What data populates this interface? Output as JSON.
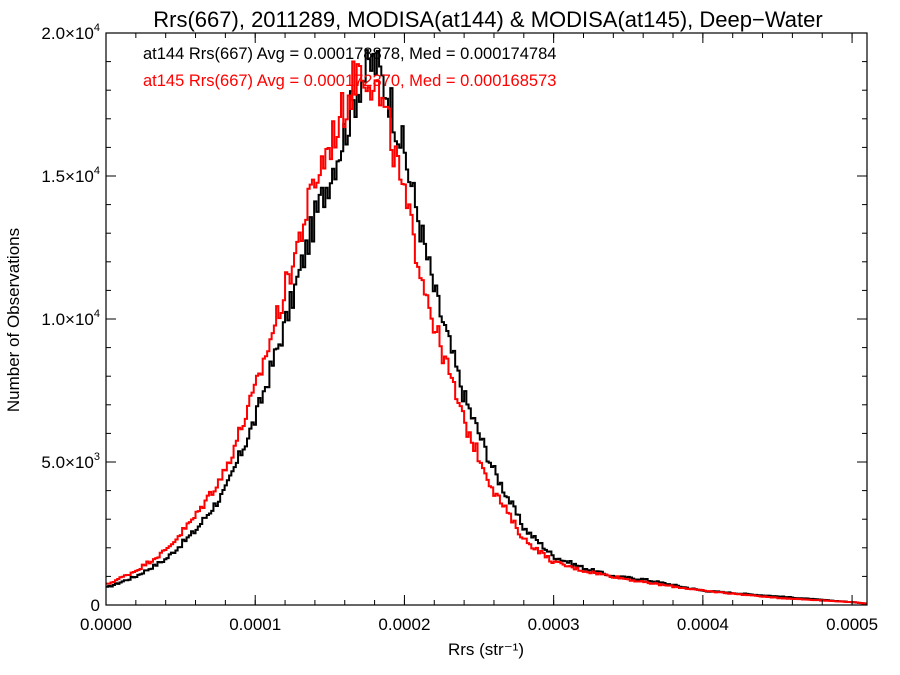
{
  "chart_data": {
    "type": "histogram-step",
    "title": "Rrs(667), 2011289, MODISA(at144) & MODISA(at145), Deep−Water",
    "xlabel": "Rrs (str⁻¹)",
    "ylabel": "Number of Observations",
    "xlim": [
      0.0,
      0.00051
    ],
    "ylim": [
      0,
      20000
    ],
    "x_ticks": [
      0.0,
      0.0001,
      0.0002,
      0.0003,
      0.0004,
      0.0005
    ],
    "x_tick_labels": [
      "0.0000",
      "0.0001",
      "0.0002",
      "0.0003",
      "0.0004",
      "0.0005"
    ],
    "y_ticks": [
      0,
      5000,
      10000,
      15000,
      20000
    ],
    "y_tick_labels": [
      {
        "mantissa": "0",
        "exponent": ""
      },
      {
        "mantissa": "5.0×10",
        "exponent": "3"
      },
      {
        "mantissa": "1.0×10",
        "exponent": "4"
      },
      {
        "mantissa": "1.5×10",
        "exponent": "4"
      },
      {
        "mantissa": "2.0×10",
        "exponent": "4"
      }
    ],
    "grid": false,
    "legend_position": "top-left",
    "series": [
      {
        "name": "at144",
        "color": "#000000",
        "legend": "at144 Rrs(667) Avg = 0.000178878, Med = 0.000174784",
        "x": [
          0.0,
          2e-05,
          4e-05,
          6e-05,
          8e-05,
          0.0001,
          0.00012,
          0.00014,
          0.00016,
          0.00017,
          0.00018,
          0.00019,
          0.0002,
          0.00022,
          0.00024,
          0.00026,
          0.00028,
          0.0003,
          0.00032,
          0.00034,
          0.00036,
          0.0004,
          0.00045,
          0.0005,
          0.00051
        ],
        "y": [
          600,
          1000,
          1600,
          2600,
          4000,
          6500,
          9800,
          13500,
          16500,
          18300,
          19000,
          17800,
          15800,
          11000,
          7300,
          4700,
          2700,
          1700,
          1300,
          1000,
          900,
          500,
          300,
          100,
          50
        ]
      },
      {
        "name": "at145",
        "color": "#ff0000",
        "legend": "at145 Rrs(667) Avg = 0.000172370, Med = 0.000168573",
        "x": [
          0.0,
          2e-05,
          4e-05,
          6e-05,
          8e-05,
          0.0001,
          0.00012,
          0.00014,
          0.00016,
          0.00017,
          0.00018,
          0.00019,
          0.0002,
          0.00022,
          0.00024,
          0.00026,
          0.00028,
          0.0003,
          0.00032,
          0.00034,
          0.00036,
          0.0004,
          0.00045,
          0.0005,
          0.00051
        ],
        "y": [
          700,
          1200,
          1900,
          3100,
          4700,
          7500,
          11000,
          14800,
          17400,
          18900,
          18300,
          16600,
          14200,
          9800,
          6400,
          4000,
          2300,
          1500,
          1200,
          1000,
          800,
          500,
          250,
          100,
          50
        ]
      }
    ]
  }
}
